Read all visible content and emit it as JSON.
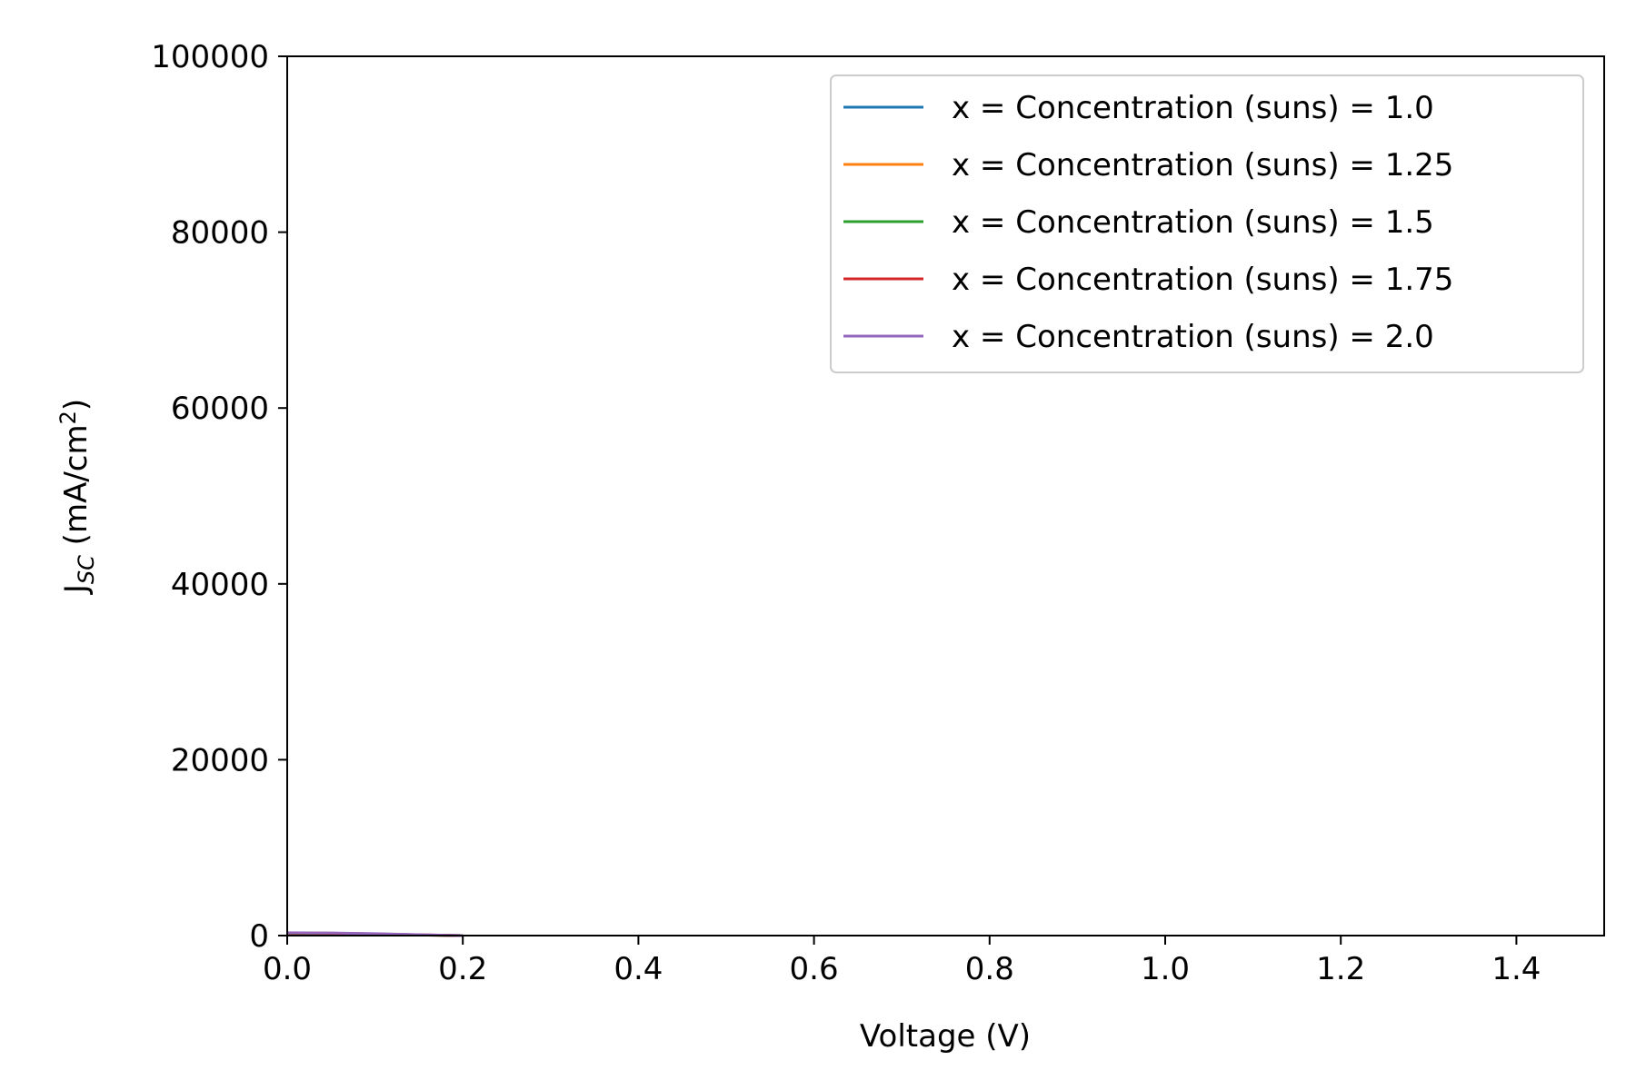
{
  "chart_data": {
    "type": "line",
    "title": "",
    "xlabel": "Voltage (V)",
    "ylabel": {
      "main": "J",
      "sub": "SC",
      "unit_prefix": " (mA/cm",
      "unit_sup": "2",
      "unit_suffix": ")"
    },
    "xlim": [
      0.0,
      1.5
    ],
    "ylim": [
      0,
      100000
    ],
    "xticks": [
      "0.0",
      "0.2",
      "0.4",
      "0.6",
      "0.8",
      "1.0",
      "1.2",
      "1.4"
    ],
    "xtick_values": [
      0.0,
      0.2,
      0.4,
      0.6,
      0.8,
      1.0,
      1.2,
      1.4
    ],
    "yticks": [
      "0",
      "20000",
      "40000",
      "60000",
      "80000",
      "100000"
    ],
    "ytick_values": [
      0,
      20000,
      40000,
      60000,
      80000,
      100000
    ],
    "grid": false,
    "legend_position": "top-right",
    "series": [
      {
        "name": "x = Concentration (suns) = 1.0",
        "color": "#1f77b4",
        "x": [
          0.0,
          0.05,
          0.1,
          0.15,
          0.2
        ],
        "y": [
          200,
          180,
          140,
          60,
          0
        ]
      },
      {
        "name": "x = Concentration (suns) = 1.25",
        "color": "#ff7f0e",
        "x": [
          0.0,
          0.05,
          0.1,
          0.15,
          0.2
        ],
        "y": [
          230,
          210,
          160,
          70,
          0
        ]
      },
      {
        "name": "x = Concentration (suns) = 1.5",
        "color": "#2ca02c",
        "x": [
          0.0,
          0.05,
          0.1,
          0.15,
          0.2
        ],
        "y": [
          260,
          240,
          180,
          80,
          0
        ]
      },
      {
        "name": "x = Concentration (suns) = 1.75",
        "color": "#d62728",
        "x": [
          0.0,
          0.05,
          0.1,
          0.15,
          0.2
        ],
        "y": [
          290,
          270,
          200,
          90,
          0
        ]
      },
      {
        "name": "x = Concentration (suns) = 2.0",
        "color": "#9467bd",
        "x": [
          0.0,
          0.05,
          0.1,
          0.15,
          0.2
        ],
        "y": [
          320,
          300,
          220,
          100,
          0
        ]
      }
    ]
  }
}
